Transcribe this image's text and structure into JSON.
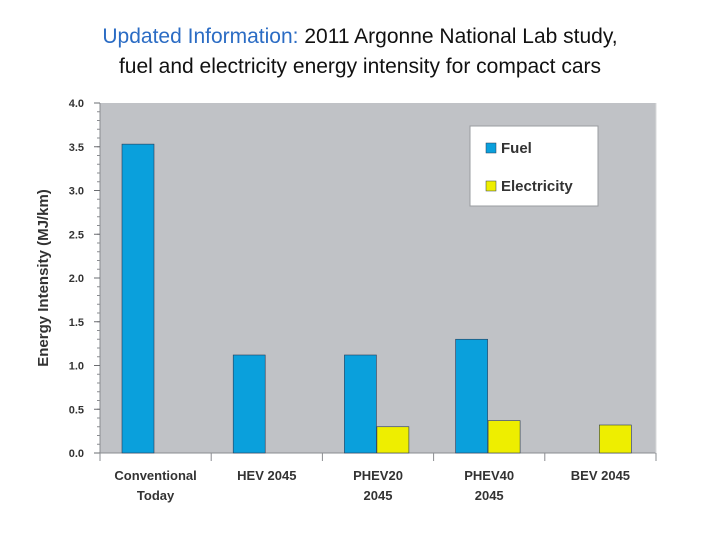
{
  "slide": {
    "title_highlight": "Updated Information:",
    "title_rest": " 2011 Argonne National Lab study,",
    "title_line2": "fuel and electricity energy intensity for compact cars"
  },
  "chart_data": {
    "type": "bar",
    "categories": [
      [
        "Conventional",
        "Today"
      ],
      [
        "HEV 2045"
      ],
      [
        "PHEV20",
        "2045"
      ],
      [
        "PHEV40",
        "2045"
      ],
      [
        "BEV 2045"
      ]
    ],
    "series": [
      {
        "name": "Fuel",
        "color": "#0aa0dc",
        "values": [
          3.53,
          1.12,
          1.12,
          1.3,
          0.0
        ]
      },
      {
        "name": "Electricity",
        "color": "#eeee00",
        "values": [
          0.0,
          0.0,
          0.3,
          0.37,
          0.32
        ]
      }
    ],
    "ylabel": "Energy Intensity (MJ/km)",
    "ylim": [
      0,
      4
    ],
    "yticks": [
      "0.0",
      "0.5",
      "1.0",
      "1.5",
      "2.0",
      "2.5",
      "3.0",
      "3.5",
      "4.0"
    ],
    "grid": true,
    "legend_position": "top-right",
    "plot_background": "#c0c2c6"
  }
}
